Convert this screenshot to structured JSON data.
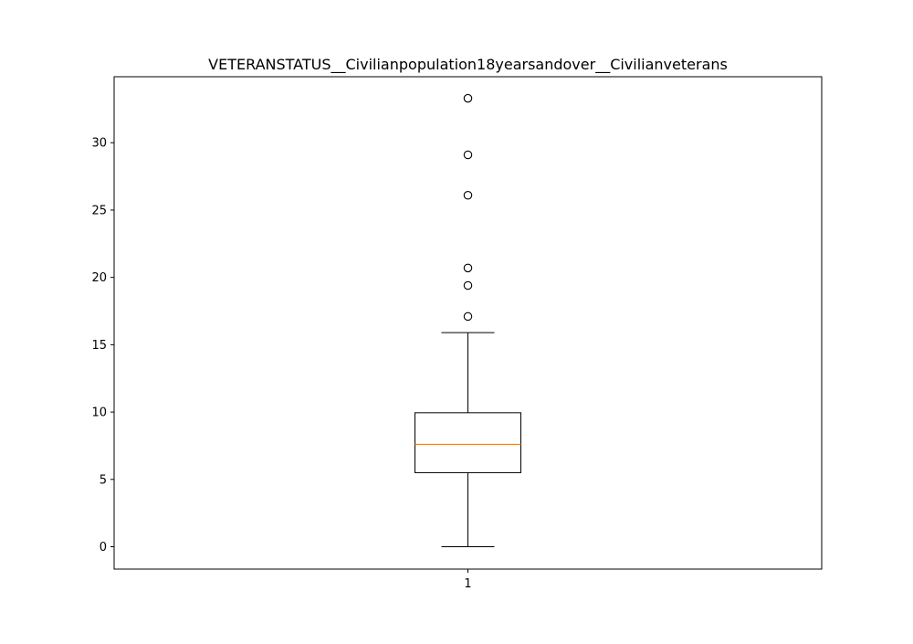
{
  "chart_data": {
    "type": "box",
    "title": "VETERANSTATUS__Civilianpopulation18yearsandover__Civilianveterans",
    "xlabel": "",
    "ylabel": "",
    "categories": [
      "1"
    ],
    "ylim": [
      -1.66,
      34.9
    ],
    "yticks": [
      0,
      5,
      10,
      15,
      20,
      25,
      30
    ],
    "grid": false,
    "box": {
      "whisker_low": 0,
      "q1": 5.5,
      "median": 7.6,
      "q3": 9.95,
      "whisker_high": 15.9,
      "outliers": [
        17.1,
        19.4,
        20.7,
        26.1,
        29.1,
        33.3
      ]
    },
    "colors": {
      "box": "#000000",
      "median": "#ff7f0e",
      "outlier_edge": "#000000"
    }
  }
}
